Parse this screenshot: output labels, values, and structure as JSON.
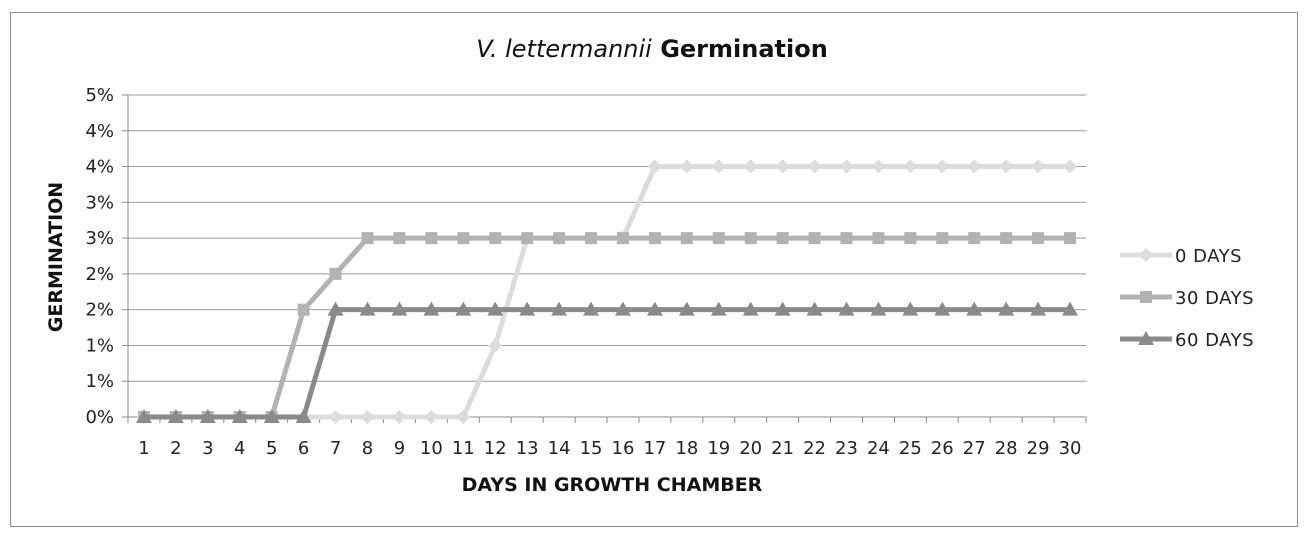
{
  "chart_data": {
    "type": "line",
    "title_italic": "V. lettermannii",
    "title_rest": " Germination",
    "xlabel": "DAYS IN GROWTH CHAMBER",
    "ylabel": "GERMINATION",
    "x": [
      1,
      2,
      3,
      4,
      5,
      6,
      7,
      8,
      9,
      10,
      11,
      12,
      13,
      14,
      15,
      16,
      17,
      18,
      19,
      20,
      21,
      22,
      23,
      24,
      25,
      26,
      27,
      28,
      29,
      30
    ],
    "y_tick_labels": [
      "0%",
      "1%",
      "1%",
      "2%",
      "2%",
      "3%",
      "3%",
      "4%",
      "4%",
      "5%"
    ],
    "ylim": [
      0,
      4.5
    ],
    "grid": true,
    "legend_position": "right",
    "series": [
      {
        "name": "0 DAYS",
        "marker": "diamond",
        "color": "#dcdcdc",
        "values": [
          0,
          0,
          0,
          0,
          0,
          0,
          0,
          0,
          0,
          0,
          0,
          1,
          2.5,
          2.5,
          2.5,
          2.5,
          3.5,
          3.5,
          3.5,
          3.5,
          3.5,
          3.5,
          3.5,
          3.5,
          3.5,
          3.5,
          3.5,
          3.5,
          3.5,
          3.5
        ]
      },
      {
        "name": "30 DAYS",
        "marker": "square",
        "color": "#b2b2b2",
        "values": [
          0,
          0,
          0,
          0,
          0,
          1.5,
          2,
          2.5,
          2.5,
          2.5,
          2.5,
          2.5,
          2.5,
          2.5,
          2.5,
          2.5,
          2.5,
          2.5,
          2.5,
          2.5,
          2.5,
          2.5,
          2.5,
          2.5,
          2.5,
          2.5,
          2.5,
          2.5,
          2.5,
          2.5
        ]
      },
      {
        "name": "60 DAYS",
        "marker": "triangle",
        "color": "#8a8a8a",
        "values": [
          0,
          0,
          0,
          0,
          0,
          0,
          1.5,
          1.5,
          1.5,
          1.5,
          1.5,
          1.5,
          1.5,
          1.5,
          1.5,
          1.5,
          1.5,
          1.5,
          1.5,
          1.5,
          1.5,
          1.5,
          1.5,
          1.5,
          1.5,
          1.5,
          1.5,
          1.5,
          1.5,
          1.5
        ]
      }
    ]
  }
}
